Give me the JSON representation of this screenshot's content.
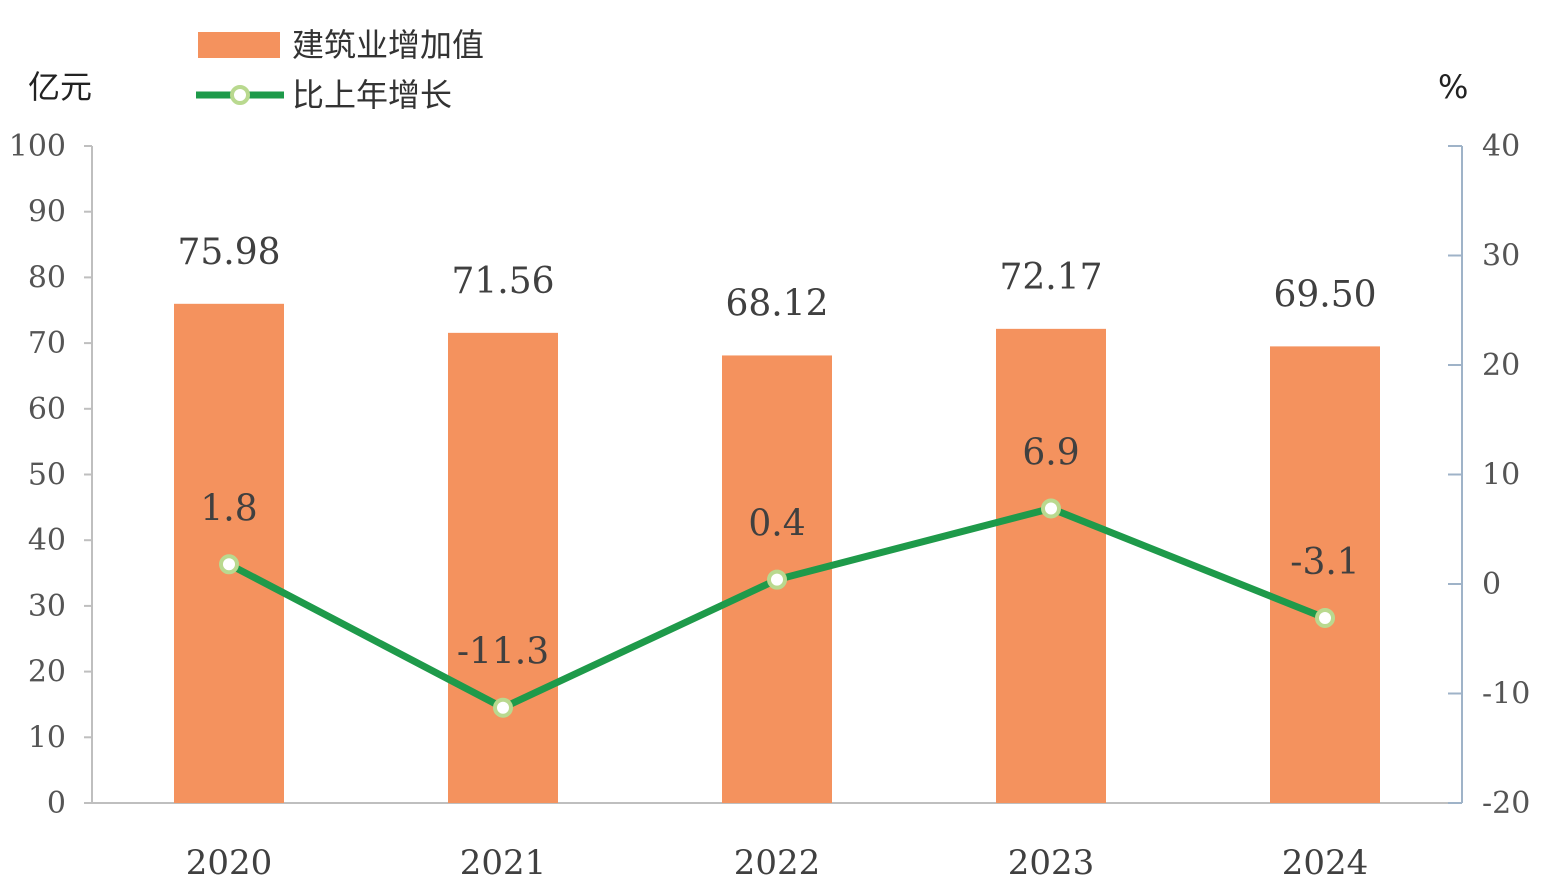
{
  "chart_data": {
    "type": "bar",
    "categories": [
      "2020",
      "2021",
      "2022",
      "2023",
      "2024"
    ],
    "series": [
      {
        "name": "建筑业增加值",
        "type": "bar",
        "axis": "left",
        "values": [
          75.98,
          71.56,
          68.12,
          72.17,
          69.5
        ],
        "labels": [
          "75.98",
          "71.56",
          "68.12",
          "72.17",
          "69.50"
        ],
        "color": "#f4925e"
      },
      {
        "name": "比上年增长",
        "type": "line",
        "axis": "right",
        "values": [
          1.8,
          -11.3,
          0.4,
          6.9,
          -3.1
        ],
        "labels": [
          "1.8",
          "-11.3",
          "0.4",
          "6.9",
          "-3.1"
        ],
        "color": "#1e9a4a"
      }
    ],
    "y_left": {
      "unit": "亿元",
      "min": 0,
      "max": 100,
      "ticks": [
        0,
        10,
        20,
        30,
        40,
        50,
        60,
        70,
        80,
        90,
        100
      ]
    },
    "y_right": {
      "unit": "%",
      "min": -20,
      "max": 40,
      "ticks": [
        -20,
        -10,
        0,
        10,
        20,
        30,
        40
      ]
    },
    "legend_position": "top-left",
    "grid": false
  }
}
